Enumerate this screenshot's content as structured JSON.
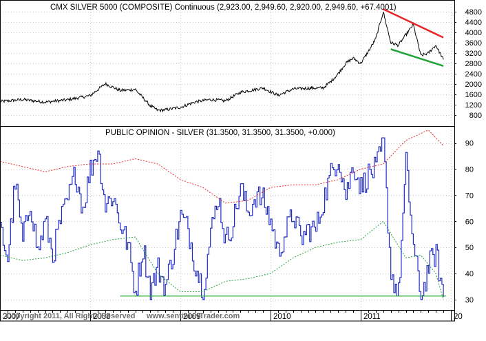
{
  "chart_data": [
    {
      "type": "line",
      "title": "CMX SILVER 5000 (COMPOSITE) Continuous (2,923.00, 2,949.60, 2,920.00, 2,949.60, +67.4001)",
      "y_ticks": [
        800,
        1200,
        1600,
        2000,
        2400,
        2800,
        3200,
        3600,
        4000,
        4400,
        4800
      ],
      "ylim": [
        400,
        5200
      ],
      "series": [
        {
          "color": "#000000",
          "points": [
            [
              "2007-01",
              1320
            ],
            [
              "2007-04",
              1400
            ],
            [
              "2007-07",
              1300
            ],
            [
              "2007-10",
              1390
            ],
            [
              "2008-01",
              1550
            ],
            [
              "2008-03",
              2010
            ],
            [
              "2008-05",
              1750
            ],
            [
              "2008-07",
              1790
            ],
            [
              "2008-09",
              1160
            ],
            [
              "2008-10",
              980
            ],
            [
              "2008-11",
              1000
            ],
            [
              "2009-01",
              1100
            ],
            [
              "2009-03",
              1310
            ],
            [
              "2009-05",
              1400
            ],
            [
              "2009-07",
              1350
            ],
            [
              "2009-09",
              1680
            ],
            [
              "2009-12",
              1850
            ],
            [
              "2010-02",
              1560
            ],
            [
              "2010-04",
              1810
            ],
            [
              "2010-06",
              1840
            ],
            [
              "2010-08",
              1850
            ],
            [
              "2010-09",
              2090
            ],
            [
              "2010-10",
              2400
            ],
            [
              "2010-11",
              2800
            ],
            [
              "2010-12",
              3000
            ],
            [
              "2011-01",
              2800
            ],
            [
              "2011-02",
              3250
            ],
            [
              "2011-03",
              3750
            ],
            [
              "2011-04",
              4800
            ],
            [
              "2011-05",
              3600
            ],
            [
              "2011-06",
              3500
            ],
            [
              "2011-07",
              3900
            ],
            [
              "2011-08",
              4300
            ],
            [
              "2011-09",
              3100
            ],
            [
              "2011-10",
              3200
            ],
            [
              "2011-11",
              3500
            ],
            [
              "2011-12",
              2950
            ]
          ]
        }
      ],
      "trendlines": [
        {
          "color": "#e8262a",
          "from": [
            "2011-04",
            4900
          ],
          "to": [
            "2011-12",
            3800
          ]
        },
        {
          "color": "#23a43a",
          "from": [
            "2011-05",
            3350
          ],
          "to": [
            "2011-12",
            2700
          ]
        }
      ]
    },
    {
      "type": "line",
      "title": "PUBLIC OPINION - SILVER (31.3500, 31.3500, 31.3500, +0.000)",
      "y_ticks": [
        30,
        40,
        50,
        60,
        70,
        80,
        90
      ],
      "ylim": [
        26,
        96
      ],
      "series": [
        {
          "style": "solid",
          "color": "#1f2bc4",
          "points": [
            [
              "2007-01",
              57
            ],
            [
              "2007-02",
              46
            ],
            [
              "2007-03",
              75
            ],
            [
              "2007-04",
              52
            ],
            [
              "2007-05",
              68
            ],
            [
              "2007-06",
              48
            ],
            [
              "2007-07",
              60
            ],
            [
              "2007-08",
              47
            ],
            [
              "2007-09",
              60
            ],
            [
              "2007-10",
              68
            ],
            [
              "2007-11",
              79
            ],
            [
              "2007-12",
              65
            ],
            [
              "2008-01",
              80
            ],
            [
              "2008-02",
              88
            ],
            [
              "2008-03",
              66
            ],
            [
              "2008-04",
              70
            ],
            [
              "2008-05",
              59
            ],
            [
              "2008-06",
              51
            ],
            [
              "2008-07",
              33
            ],
            [
              "2008-08",
              50
            ],
            [
              "2008-09",
              34
            ],
            [
              "2008-10",
              42
            ],
            [
              "2008-11",
              35
            ],
            [
              "2008-12",
              48
            ],
            [
              "2009-01",
              62
            ],
            [
              "2009-02",
              57
            ],
            [
              "2009-03",
              43
            ],
            [
              "2009-04",
              34
            ],
            [
              "2009-05",
              55
            ],
            [
              "2009-06",
              70
            ],
            [
              "2009-07",
              52
            ],
            [
              "2009-08",
              60
            ],
            [
              "2009-09",
              73
            ],
            [
              "2009-10",
              63
            ],
            [
              "2009-11",
              70
            ],
            [
              "2009-12",
              68
            ],
            [
              "2010-01",
              60
            ],
            [
              "2010-02",
              48
            ],
            [
              "2010-03",
              56
            ],
            [
              "2010-04",
              63
            ],
            [
              "2010-05",
              53
            ],
            [
              "2010-06",
              57
            ],
            [
              "2010-07",
              57
            ],
            [
              "2010-08",
              68
            ],
            [
              "2010-09",
              78
            ],
            [
              "2010-10",
              85
            ],
            [
              "2010-11",
              70
            ],
            [
              "2010-12",
              82
            ],
            [
              "2011-01",
              73
            ],
            [
              "2011-02",
              78
            ],
            [
              "2011-03",
              80
            ],
            [
              "2011-04",
              90
            ],
            [
              "2011-05",
              40
            ],
            [
              "2011-06",
              32
            ],
            [
              "2011-07",
              82
            ],
            [
              "2011-08",
              50
            ],
            [
              "2011-09",
              30
            ],
            [
              "2011-10",
              43
            ],
            [
              "2011-11",
              48
            ],
            [
              "2011-12",
              31
            ]
          ]
        },
        {
          "style": "dotted",
          "color": "#e8262a",
          "points": [
            [
              "2007-01",
              83
            ],
            [
              "2007-04",
              81
            ],
            [
              "2007-07",
              79
            ],
            [
              "2007-10",
              81
            ],
            [
              "2008-01",
              82
            ],
            [
              "2008-04",
              82
            ],
            [
              "2008-07",
              84
            ],
            [
              "2008-10",
              82
            ],
            [
              "2009-01",
              76
            ],
            [
              "2009-04",
              73
            ],
            [
              "2009-07",
              67
            ],
            [
              "2009-10",
              68
            ],
            [
              "2010-01",
              73
            ],
            [
              "2010-04",
              74
            ],
            [
              "2010-07",
              74
            ],
            [
              "2010-10",
              76
            ],
            [
              "2011-01",
              80
            ],
            [
              "2011-04",
              82
            ],
            [
              "2011-07",
              91
            ],
            [
              "2011-10",
              95
            ],
            [
              "2011-12",
              89
            ]
          ]
        },
        {
          "style": "dotted",
          "color": "#23a43a",
          "points": [
            [
              "2007-01",
              47
            ],
            [
              "2007-04",
              45
            ],
            [
              "2007-07",
              46
            ],
            [
              "2007-10",
              48
            ],
            [
              "2008-01",
              51
            ],
            [
              "2008-04",
              53
            ],
            [
              "2008-07",
              54
            ],
            [
              "2008-10",
              40
            ],
            [
              "2009-01",
              33
            ],
            [
              "2009-04",
              33
            ],
            [
              "2009-07",
              37
            ],
            [
              "2009-10",
              38
            ],
            [
              "2010-01",
              40
            ],
            [
              "2010-04",
              46
            ],
            [
              "2010-07",
              50
            ],
            [
              "2010-10",
              52
            ],
            [
              "2011-01",
              53
            ],
            [
              "2011-04",
              60
            ],
            [
              "2011-07",
              46
            ],
            [
              "2011-09",
              47
            ],
            [
              "2011-11",
              40
            ],
            [
              "2011-12",
              30
            ]
          ]
        }
      ],
      "horizontal_line": {
        "value": 31.35,
        "color": "#23a43a",
        "from": "2008-05",
        "to": "2011-12"
      }
    }
  ],
  "x_axis": {
    "range": [
      "2007-01",
      "2012-01"
    ],
    "labels": [
      {
        "date": "2007-01",
        "text": "2007"
      },
      {
        "date": "2008-01",
        "text": "2008"
      },
      {
        "date": "2009-01",
        "text": "2009"
      },
      {
        "date": "2010-01",
        "text": "2010"
      },
      {
        "date": "2011-01",
        "text": "2011"
      },
      {
        "date": "2012-01",
        "text": "20"
      }
    ]
  },
  "copyright": "Copyright 2011, All Rights Reserved",
  "website": "www.sentimenTrader.com"
}
